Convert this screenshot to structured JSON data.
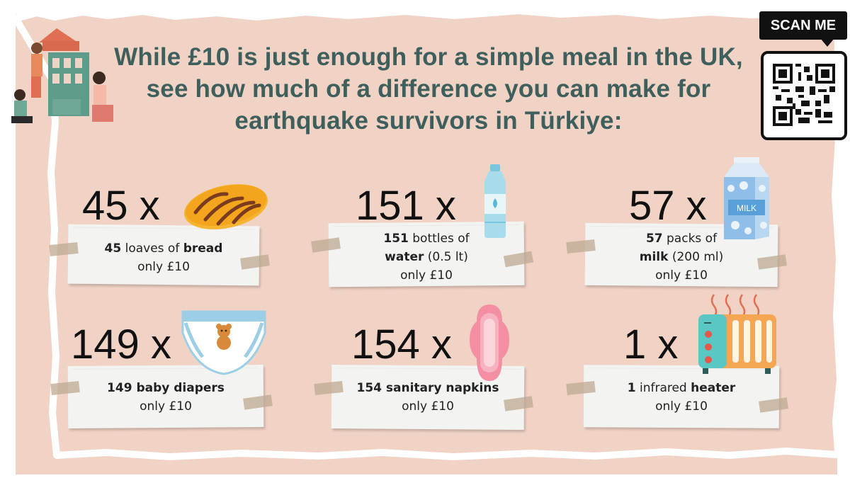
{
  "headline": {
    "line1": "While £10 is just enough for a simple meal in the UK,",
    "line2": "see how much of a difference you can make for",
    "line3": "earthquake survivors in Türkiye:"
  },
  "scan": {
    "label": "SCAN ME"
  },
  "items": [
    {
      "count": "45 x",
      "num": "45",
      "mid": " loaves of ",
      "bold": "bread",
      "tail": "",
      "line2": "",
      "price": "only £10",
      "icon": "bread-icon"
    },
    {
      "count": "151 x",
      "num": "151",
      "mid": " bottles of",
      "bold": "water",
      "tail": " (0.5 lt)",
      "price": "only £10",
      "icon": "water-bottle-icon"
    },
    {
      "count": "57 x",
      "num": "57",
      "mid": " packs of",
      "bold": "milk",
      "tail": " (200 ml)",
      "price": "only £10",
      "icon": "milk-carton-icon",
      "carton_label": "MILK"
    },
    {
      "count": "149 x",
      "text": "149 baby diapers",
      "price": "only £10",
      "icon": "diaper-icon"
    },
    {
      "count": "154 x",
      "text": "154 sanitary napkins",
      "price": "only £10",
      "icon": "sanitary-pad-icon"
    },
    {
      "count": "1 x",
      "num": "1",
      "mid": " infrared ",
      "bold": "heater",
      "price": "only £10",
      "icon": "heater-icon"
    }
  ],
  "colors": {
    "background": "#f1d3c6",
    "headline": "#3f5f5c",
    "note": "#f3f3f1"
  }
}
